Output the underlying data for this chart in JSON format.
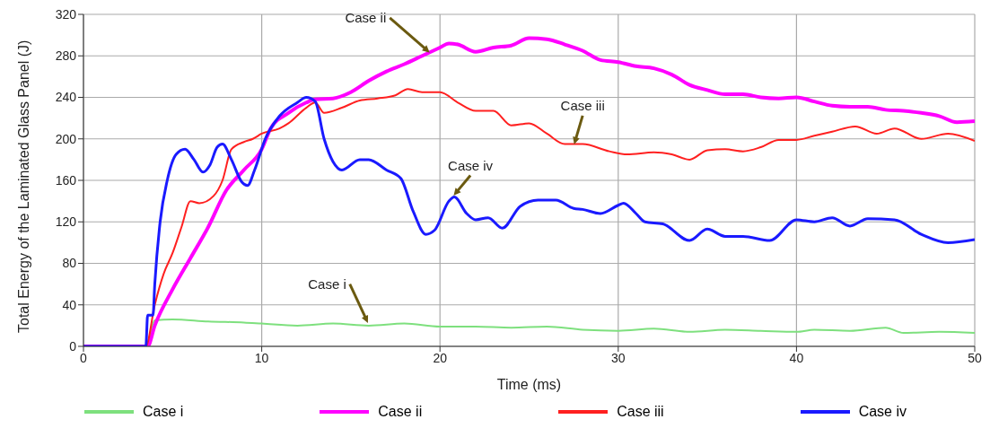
{
  "chart_data": {
    "type": "line",
    "xlabel": "Time (ms)",
    "ylabel": "Total Energy of the Laminated Glass Panel (J)",
    "xlim": [
      0,
      50
    ],
    "xticks": [
      0,
      10,
      20,
      30,
      40,
      50
    ],
    "ylim": [
      0,
      320
    ],
    "yticks": [
      0,
      40,
      80,
      120,
      160,
      200,
      240,
      280,
      320
    ],
    "grid": true,
    "legend": "bottom",
    "marker": "none",
    "line_style": "solid",
    "series": [
      {
        "name": "Case i",
        "color": "#7ee07e",
        "x": [
          0,
          3.5,
          4,
          5,
          7,
          9,
          10,
          12,
          14,
          16,
          18,
          20,
          22,
          24,
          26,
          28,
          30,
          32,
          34,
          36,
          38,
          40,
          41,
          43,
          45,
          46,
          48,
          50
        ],
        "values": [
          0,
          0,
          25,
          26,
          24,
          23,
          22,
          20,
          22,
          20,
          22,
          19,
          19,
          18,
          19,
          16,
          15,
          17,
          14,
          16,
          15,
          14,
          16,
          15,
          18,
          13,
          14,
          13
        ]
      },
      {
        "name": "Case ii",
        "color": "#ff00ff",
        "x": [
          0,
          3.6,
          4,
          5,
          6,
          7,
          8,
          9,
          10,
          10.5,
          11.5,
          12.5,
          13,
          14,
          15,
          16,
          17,
          18,
          19,
          20,
          20.5,
          21,
          22,
          23,
          24,
          25,
          26,
          27,
          28,
          29,
          30,
          31,
          32,
          33,
          34,
          35,
          36,
          37,
          38,
          39,
          40,
          41,
          42,
          43,
          44,
          45,
          46,
          47,
          48,
          49,
          50
        ],
        "values": [
          0,
          0,
          20,
          55,
          85,
          115,
          150,
          170,
          190,
          210,
          225,
          235,
          238,
          239,
          245,
          256,
          265,
          272,
          280,
          288,
          292,
          291,
          284,
          288,
          290,
          297,
          296,
          291,
          285,
          276,
          274,
          270,
          268,
          262,
          252,
          247,
          243,
          243,
          240,
          239,
          240,
          236,
          232,
          231,
          231,
          228,
          227,
          225,
          222,
          216,
          217
        ]
      },
      {
        "name": "Case iii",
        "color": "#ff2020",
        "x": [
          0,
          3.5,
          4,
          4.5,
          5,
          5.5,
          6,
          6.5,
          7.3,
          7.8,
          8.3,
          9,
          9.5,
          10,
          11,
          11.5,
          12.5,
          13,
          13.5,
          14.5,
          15.5,
          16.5,
          17.5,
          18.2,
          19,
          20,
          21,
          22,
          23,
          24,
          25,
          26,
          27,
          28,
          29.5,
          30.5,
          32,
          33,
          34,
          35,
          36,
          37,
          38,
          39,
          40,
          41,
          42,
          43.3,
          44.5,
          45.5,
          47,
          48.5,
          50
        ],
        "values": [
          0,
          0,
          40,
          70,
          90,
          115,
          140,
          138,
          145,
          160,
          190,
          197,
          200,
          205,
          210,
          215,
          230,
          235,
          225,
          230,
          237,
          239,
          242,
          248,
          245,
          245,
          235,
          227,
          227,
          213,
          215,
          205,
          195,
          195,
          188,
          185,
          187,
          185,
          180,
          189,
          190,
          188,
          192,
          199,
          199,
          203,
          207,
          212,
          205,
          210,
          200,
          205,
          198
        ]
      },
      {
        "name": "Case iv",
        "color": "#1a1aff",
        "x": [
          0,
          3.5,
          3.6,
          3.9,
          4,
          4.3,
          4.7,
          5.2,
          5.7,
          6.2,
          6.7,
          7.1,
          7.5,
          7.8,
          8.3,
          8.9,
          9.2,
          9.6,
          10.2,
          11,
          12,
          12.5,
          13,
          13.5,
          14,
          14.5,
          15.5,
          16,
          17,
          17.8,
          18.5,
          19.2,
          19.7,
          20.5,
          20.8,
          21.5,
          22,
          22.7,
          23.5,
          24.5,
          25.5,
          26.5,
          27.5,
          28,
          29,
          30,
          30.3,
          31,
          31.5,
          32.5,
          34,
          35,
          36,
          37,
          38.5,
          40,
          41,
          42,
          43,
          44,
          45.5,
          47,
          48.5,
          50
        ],
        "values": [
          0,
          0,
          30,
          30,
          60,
          120,
          160,
          185,
          190,
          180,
          168,
          175,
          192,
          195,
          180,
          158,
          155,
          170,
          200,
          222,
          235,
          240,
          236,
          200,
          178,
          170,
          180,
          180,
          170,
          162,
          130,
          108,
          112,
          140,
          144,
          128,
          122,
          124,
          114,
          135,
          141,
          141,
          133,
          132,
          128,
          136,
          138,
          128,
          120,
          118,
          102,
          113,
          106,
          106,
          102,
          122,
          120,
          124,
          116,
          123,
          122,
          108,
          100,
          103
        ]
      }
    ],
    "annotations": [
      {
        "text": "Case ii",
        "x": 19.5,
        "y": 282
      },
      {
        "text": "Case iii",
        "x": 27.5,
        "y": 193
      },
      {
        "text": "Case iv",
        "x": 20.7,
        "y": 144
      },
      {
        "text": "Case i",
        "x": 16,
        "y": 21
      }
    ]
  }
}
